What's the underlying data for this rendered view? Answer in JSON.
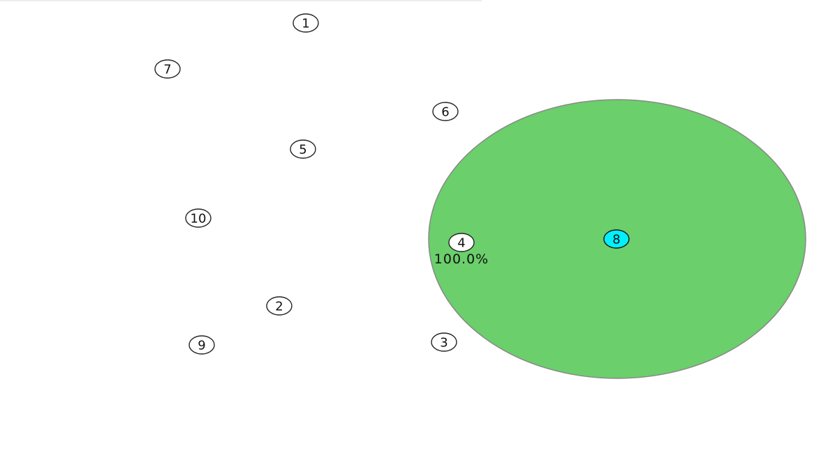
{
  "colors": {
    "region_fill": "#6bcf6b",
    "region_stroke": "#888888",
    "node_fill": "#ffffff",
    "highlight_fill": "#00f0ff"
  },
  "nodes": [
    {
      "id": "1",
      "label": "1",
      "highlighted": false
    },
    {
      "id": "2",
      "label": "2",
      "highlighted": false
    },
    {
      "id": "3",
      "label": "3",
      "highlighted": false
    },
    {
      "id": "4",
      "label": "4",
      "highlighted": false
    },
    {
      "id": "5",
      "label": "5",
      "highlighted": false
    },
    {
      "id": "6",
      "label": "6",
      "highlighted": false
    },
    {
      "id": "7",
      "label": "7",
      "highlighted": false
    },
    {
      "id": "8",
      "label": "8",
      "highlighted": true
    },
    {
      "id": "9",
      "label": "9",
      "highlighted": false
    },
    {
      "id": "10",
      "label": "10",
      "highlighted": false
    }
  ],
  "region": {
    "percent_label": "100.0%"
  }
}
